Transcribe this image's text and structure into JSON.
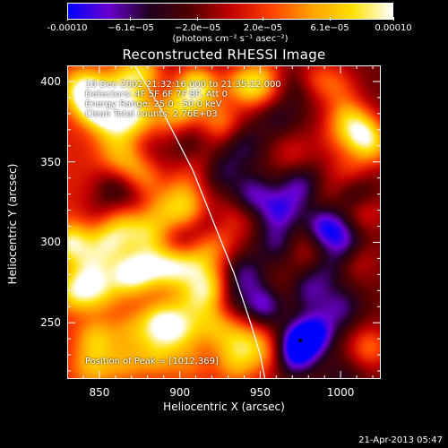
{
  "colorbar": {
    "tick_labels": [
      "-0.00010",
      "−6.1e−05",
      "−2.0e−05",
      "2.0e−05",
      "6.1e−05",
      "0.00010"
    ],
    "tick_values": [
      -0.0001,
      -6.1e-05,
      -2e-05,
      2e-05,
      6.1e-05,
      0.0001
    ],
    "range": [
      -0.0001,
      0.0001
    ],
    "units": "(photons cm⁻² s⁻¹ asec⁻²)",
    "colormap": [
      "#0000ff",
      "#6a00d0",
      "#200020",
      "#500000",
      "#c00000",
      "#ff4000",
      "#ffa000",
      "#ffe000",
      "#ffffff"
    ]
  },
  "title": "Reconstructed RHESSI Image",
  "info_lines": [
    "10-Dec-2002 21:32:16.000 to 21:35:12.000",
    "Detectors: 4F 5F 6F 7F 8F, Att 0",
    "Energy Range: 25.0 - 50.0 keV",
    "Clean    Total counts: 2.76E+03"
  ],
  "peak_text": "Position of Peak = [1012,369]",
  "timestamp": "21-Apr-2013 05:47",
  "chart_data": {
    "type": "heatmap",
    "title": "Reconstructed RHESSI Image",
    "xlabel": "Heliocentric X (arcsec)",
    "ylabel": "Heliocentric Y (arcsec)",
    "xlim": [
      830,
      1025
    ],
    "ylim": [
      215,
      410
    ],
    "xticks": [
      850,
      900,
      950,
      1000
    ],
    "xtick_labels": [
      "850",
      "900",
      "950",
      "1000"
    ],
    "yticks": [
      250,
      300,
      350,
      400
    ],
    "ytick_labels": [
      "250",
      "300",
      "350",
      "400"
    ],
    "limb_curve": [
      [
        872,
        410
      ],
      [
        890,
        380
      ],
      [
        908,
        345
      ],
      [
        922,
        310
      ],
      [
        934,
        280
      ],
      [
        944,
        250
      ],
      [
        950,
        230
      ],
      [
        953,
        215
      ]
    ],
    "hot_spots": [
      [
        840,
        395,
        1.0
      ],
      [
        848,
        385,
        0.8
      ],
      [
        855,
        385,
        0.9
      ],
      [
        866,
        400,
        0.6
      ],
      [
        872,
        380,
        0.8
      ],
      [
        860,
        370,
        0.5
      ],
      [
        878,
        407,
        0.7
      ],
      [
        895,
        380,
        0.5
      ],
      [
        903,
        387,
        0.6
      ],
      [
        910,
        400,
        0.8
      ],
      [
        915,
        392,
        0.4
      ],
      [
        925,
        375,
        0.6
      ],
      [
        937,
        400,
        0.5
      ],
      [
        945,
        395,
        0.6
      ],
      [
        952,
        405,
        0.5
      ],
      [
        870,
        350,
        0.4
      ],
      [
        880,
        340,
        0.5
      ],
      [
        860,
        355,
        0.3
      ],
      [
        915,
        350,
        0.3
      ],
      [
        900,
        335,
        0.4
      ],
      [
        905,
        320,
        0.6
      ],
      [
        890,
        320,
        0.4
      ],
      [
        920,
        300,
        0.5
      ],
      [
        935,
        315,
        0.3
      ],
      [
        880,
        305,
        0.6
      ],
      [
        865,
        310,
        0.5
      ],
      [
        855,
        300,
        0.7
      ],
      [
        845,
        285,
        0.6
      ],
      [
        832,
        300,
        0.9
      ],
      [
        835,
        270,
        0.8
      ],
      [
        850,
        270,
        0.6
      ],
      [
        868,
        280,
        0.9
      ],
      [
        880,
        285,
        0.7
      ],
      [
        895,
        285,
        0.8
      ],
      [
        910,
        285,
        0.6
      ],
      [
        918,
        270,
        0.8
      ],
      [
        848,
        240,
        0.6
      ],
      [
        870,
        245,
        0.4
      ],
      [
        888,
        250,
        0.9
      ],
      [
        900,
        245,
        0.6
      ],
      [
        905,
        262,
        0.4
      ],
      [
        920,
        250,
        0.5
      ],
      [
        932,
        240,
        0.4
      ],
      [
        935,
        225,
        0.5
      ],
      [
        945,
        238,
        0.5
      ],
      [
        955,
        230,
        0.4
      ],
      [
        905,
        225,
        0.3
      ],
      [
        885,
        230,
        0.5
      ],
      [
        865,
        225,
        0.4
      ],
      [
        845,
        222,
        0.5
      ],
      [
        1012,
        369,
        1.0
      ],
      [
        1003,
        380,
        0.6
      ],
      [
        1020,
        360,
        0.7
      ],
      [
        1005,
        345,
        0.4
      ],
      [
        998,
        398,
        0.4
      ],
      [
        985,
        402,
        0.4
      ],
      [
        995,
        365,
        0.3
      ],
      [
        1015,
        320,
        0.4
      ],
      [
        1018,
        235,
        0.6
      ],
      [
        985,
        290,
        0.3
      ],
      [
        970,
        355,
        0.3
      ],
      [
        960,
        390,
        0.3
      ],
      [
        990,
        330,
        0.2
      ],
      [
        975,
        300,
        0.2
      ],
      [
        960,
        270,
        0.2
      ],
      [
        1010,
        290,
        0.3
      ]
    ],
    "cold_spots": [
      [
        975,
        238,
        1.0
      ],
      [
        985,
        245,
        0.7
      ],
      [
        970,
        228,
        0.6
      ],
      [
        952,
        262,
        0.8
      ],
      [
        962,
        320,
        0.7
      ],
      [
        990,
        310,
        0.8
      ],
      [
        1002,
        300,
        0.6
      ],
      [
        975,
        335,
        0.6
      ],
      [
        990,
        285,
        0.5
      ],
      [
        945,
        330,
        0.6
      ],
      [
        925,
        345,
        0.5
      ],
      [
        915,
        310,
        0.4
      ],
      [
        905,
        360,
        0.3
      ],
      [
        880,
        355,
        0.3
      ],
      [
        858,
        335,
        0.4
      ],
      [
        900,
        300,
        0.3
      ],
      [
        940,
        280,
        0.6
      ],
      [
        960,
        380,
        0.4
      ],
      [
        980,
        270,
        0.5
      ],
      [
        1000,
        260,
        0.5
      ],
      [
        970,
        395,
        0.3
      ],
      [
        1010,
        330,
        0.4
      ],
      [
        930,
        265,
        0.4
      ],
      [
        890,
        340,
        0.3
      ],
      [
        960,
        300,
        0.5
      ],
      [
        1000,
        215,
        0.3
      ],
      [
        850,
        320,
        0.2
      ],
      [
        870,
        330,
        0.3
      ],
      [
        940,
        360,
        0.4
      ]
    ]
  }
}
